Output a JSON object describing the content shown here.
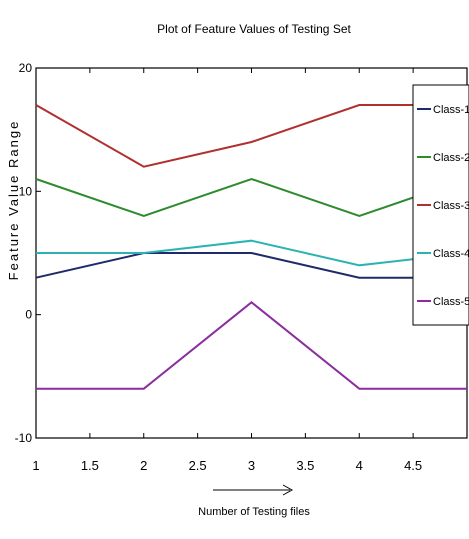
{
  "chart_data": {
    "type": "line",
    "title": "Plot of Feature Values of Testing Set",
    "xlabel": "Number of Testing files",
    "ylabel": "Feature Value Range",
    "xlim": [
      1,
      5
    ],
    "ylim": [
      -10,
      20
    ],
    "x_ticks": [
      "1",
      "1.5",
      "2",
      "2.5",
      "3",
      "3.5",
      "4",
      "4.5"
    ],
    "x_tick_values": [
      1,
      1.5,
      2,
      2.5,
      3,
      3.5,
      4,
      4.5
    ],
    "y_ticks": [
      "20",
      "10",
      "0",
      "-10"
    ],
    "y_tick_values": [
      20,
      10,
      0,
      -10
    ],
    "legend_position": "right",
    "x": [
      1,
      2,
      3,
      4,
      5
    ],
    "series": [
      {
        "name": "Class-1",
        "color": "#1f2a6b",
        "values": [
          3,
          5,
          5,
          3,
          3
        ]
      },
      {
        "name": "Class-2",
        "color": "#2e8b2e",
        "values": [
          11,
          8,
          11,
          8,
          11
        ]
      },
      {
        "name": "Class-3",
        "color": "#b03030",
        "values": [
          17,
          12,
          14,
          17,
          17
        ]
      },
      {
        "name": "Class-4",
        "color": "#2bb3b3",
        "values": [
          5,
          5,
          6,
          4,
          5
        ]
      },
      {
        "name": "Class-5",
        "color": "#8b2d9e",
        "values": [
          -6,
          -6,
          1,
          -6,
          -6
        ]
      }
    ]
  }
}
